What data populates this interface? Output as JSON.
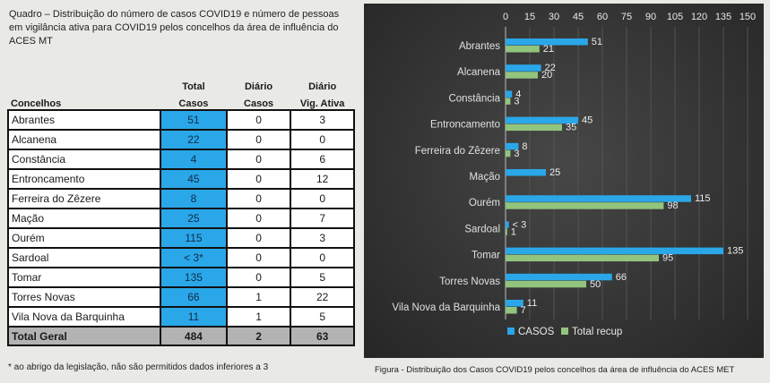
{
  "table": {
    "caption": "Quadro – Distribuição do número de casos COVID19 e número de pessoas em vigilância ativa para COVID19 pelos concelhos da área de influência do ACES MT",
    "headers": {
      "row1": [
        "",
        "Total",
        "Diário",
        "Diário"
      ],
      "row2": [
        "Concelhos",
        "Casos",
        "Casos",
        "Vig. Ativa"
      ]
    },
    "rows": [
      {
        "concelho": "Abrantes",
        "total_casos": "51",
        "diario_casos": "0",
        "diario_vig": "3"
      },
      {
        "concelho": "Alcanena",
        "total_casos": "22",
        "diario_casos": "0",
        "diario_vig": "0"
      },
      {
        "concelho": "Constância",
        "total_casos": "4",
        "diario_casos": "0",
        "diario_vig": "6"
      },
      {
        "concelho": "Entroncamento",
        "total_casos": "45",
        "diario_casos": "0",
        "diario_vig": "12"
      },
      {
        "concelho": "Ferreira do Zêzere",
        "total_casos": "8",
        "diario_casos": "0",
        "diario_vig": "0"
      },
      {
        "concelho": "Mação",
        "total_casos": "25",
        "diario_casos": "0",
        "diario_vig": "7"
      },
      {
        "concelho": "Ourém",
        "total_casos": "115",
        "diario_casos": "0",
        "diario_vig": "3"
      },
      {
        "concelho": "Sardoal",
        "total_casos": "< 3*",
        "diario_casos": "0",
        "diario_vig": "0"
      },
      {
        "concelho": "Tomar",
        "total_casos": "135",
        "diario_casos": "0",
        "diario_vig": "5"
      },
      {
        "concelho": "Torres Novas",
        "total_casos": "66",
        "diario_casos": "1",
        "diario_vig": "22"
      },
      {
        "concelho": "Vila Nova da Barquinha",
        "total_casos": "11",
        "diario_casos": "1",
        "diario_vig": "5"
      }
    ],
    "total": {
      "label": "Total Geral",
      "total_casos": "484",
      "diario_casos": "2",
      "diario_vig": "63"
    },
    "footnote": "* ao abrigo da legislação, não são permitidos dados inferiores a 3"
  },
  "chart_data": {
    "type": "bar",
    "orientation": "horizontal",
    "categories": [
      "Abrantes",
      "Alcanena",
      "Constância",
      "Entroncamento",
      "Ferreira do Zêzere",
      "Mação",
      "Ourém",
      "Sardoal",
      "Tomar",
      "Torres Novas",
      "Vila Nova da Barquinha"
    ],
    "series": [
      {
        "name": "CASOS",
        "color": "#2aa7e8",
        "values": [
          51,
          22,
          4,
          45,
          8,
          25,
          115,
          2,
          135,
          66,
          11
        ],
        "labels": [
          "51",
          "22",
          "4",
          "45",
          "8",
          "25",
          "115",
          "< 3",
          "135",
          "66",
          "11"
        ]
      },
      {
        "name": "Total recup",
        "color": "#92c47d",
        "values": [
          21,
          20,
          3,
          35,
          3,
          0,
          98,
          1,
          95,
          50,
          7
        ],
        "labels": [
          "21",
          "20",
          "3",
          "35",
          "3",
          "",
          "98",
          "1",
          "95",
          "50",
          "7"
        ]
      }
    ],
    "xticks": [
      "0",
      "15",
      "30",
      "45",
      "60",
      "75",
      "90",
      "105",
      "120",
      "135",
      "150"
    ],
    "xlim": [
      0,
      150
    ],
    "axis_position": "top",
    "grid": true,
    "legend": "bottom"
  },
  "figure_caption": "Figura -  Distribuição dos Casos COVID19 pelos concelhos da área de influência do ACES MET"
}
